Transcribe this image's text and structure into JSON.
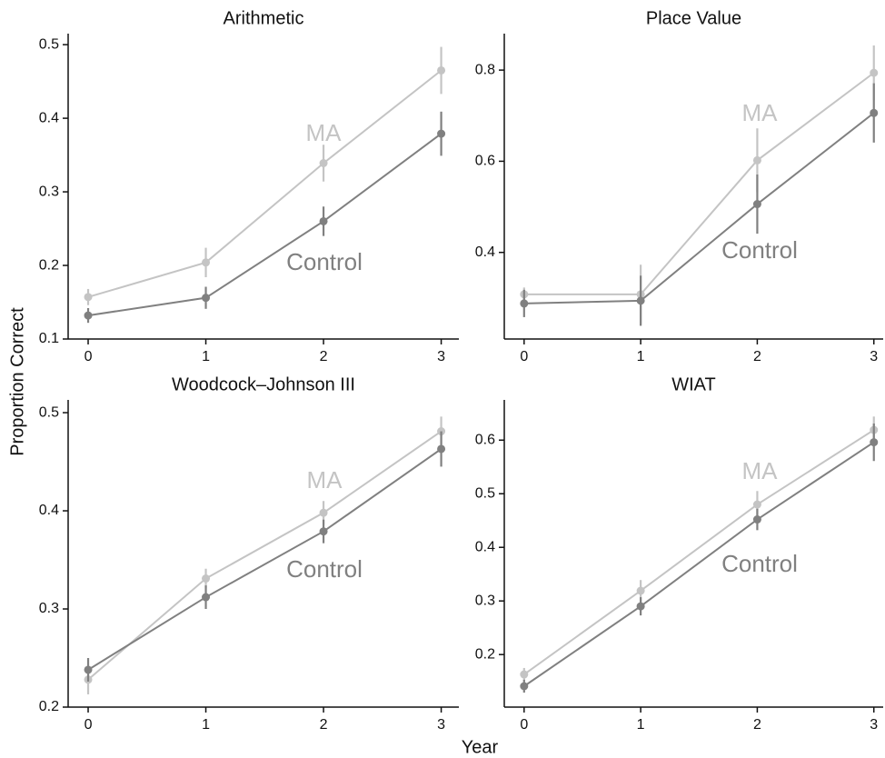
{
  "chart_data": [
    {
      "type": "line",
      "title": "Arithmetic",
      "x": [
        0,
        1,
        2,
        3
      ],
      "xlim": [
        -0.17,
        3.15
      ],
      "xticks": [
        0,
        1,
        2,
        3
      ],
      "ylim": [
        0.1,
        0.515
      ],
      "yticks": [
        0.1,
        0.2,
        0.3,
        0.4,
        0.5
      ],
      "series": [
        {
          "name": "MA",
          "color": "#c4c4c4",
          "values": [
            0.157,
            0.204,
            0.339,
            0.465
          ],
          "errors": [
            0.011,
            0.02,
            0.025,
            0.032
          ]
        },
        {
          "name": "Control",
          "color": "#808080",
          "values": [
            0.132,
            0.156,
            0.26,
            0.379
          ],
          "errors": [
            0.01,
            0.015,
            0.02,
            0.03
          ]
        }
      ]
    },
    {
      "type": "line",
      "title": "Place Value",
      "x": [
        0,
        1,
        2,
        3
      ],
      "xlim": [
        -0.17,
        3.08
      ],
      "xticks": [
        0,
        1,
        2,
        3
      ],
      "ylim": [
        0.21,
        0.88
      ],
      "yticks": [
        0.4,
        0.6,
        0.8
      ],
      "series": [
        {
          "name": "MA",
          "color": "#c4c4c4",
          "values": [
            0.308,
            0.308,
            0.602,
            0.794
          ],
          "errors": [
            0.015,
            0.065,
            0.07,
            0.06
          ]
        },
        {
          "name": "Control",
          "color": "#808080",
          "values": [
            0.288,
            0.294,
            0.506,
            0.706
          ],
          "errors": [
            0.03,
            0.055,
            0.065,
            0.065
          ]
        }
      ]
    },
    {
      "type": "line",
      "title": "Woodcock–Johnson III",
      "x": [
        0,
        1,
        2,
        3
      ],
      "xlim": [
        -0.17,
        3.15
      ],
      "xticks": [
        0,
        1,
        2,
        3
      ],
      "ylim": [
        0.2,
        0.513
      ],
      "yticks": [
        0.2,
        0.3,
        0.4,
        0.5
      ],
      "series": [
        {
          "name": "MA",
          "color": "#c4c4c4",
          "values": [
            0.228,
            0.331,
            0.398,
            0.481
          ],
          "errors": [
            0.015,
            0.01,
            0.012,
            0.015
          ]
        },
        {
          "name": "Control",
          "color": "#808080",
          "values": [
            0.238,
            0.312,
            0.379,
            0.463
          ],
          "errors": [
            0.012,
            0.012,
            0.012,
            0.018
          ]
        }
      ]
    },
    {
      "type": "line",
      "title": "WIAT",
      "x": [
        0,
        1,
        2,
        3
      ],
      "xlim": [
        -0.17,
        3.08
      ],
      "xticks": [
        0,
        1,
        2,
        3
      ],
      "ylim": [
        0.102,
        0.675
      ],
      "yticks": [
        0.2,
        0.3,
        0.4,
        0.5,
        0.6
      ],
      "series": [
        {
          "name": "MA",
          "color": "#c4c4c4",
          "values": [
            0.163,
            0.319,
            0.48,
            0.619
          ],
          "errors": [
            0.012,
            0.02,
            0.025,
            0.025
          ]
        },
        {
          "name": "Control",
          "color": "#808080",
          "values": [
            0.141,
            0.29,
            0.452,
            0.596
          ],
          "errors": [
            0.012,
            0.017,
            0.02,
            0.035
          ]
        }
      ]
    }
  ],
  "shared": {
    "ylabel": "Proportion Correct",
    "xlabel": "Year"
  }
}
